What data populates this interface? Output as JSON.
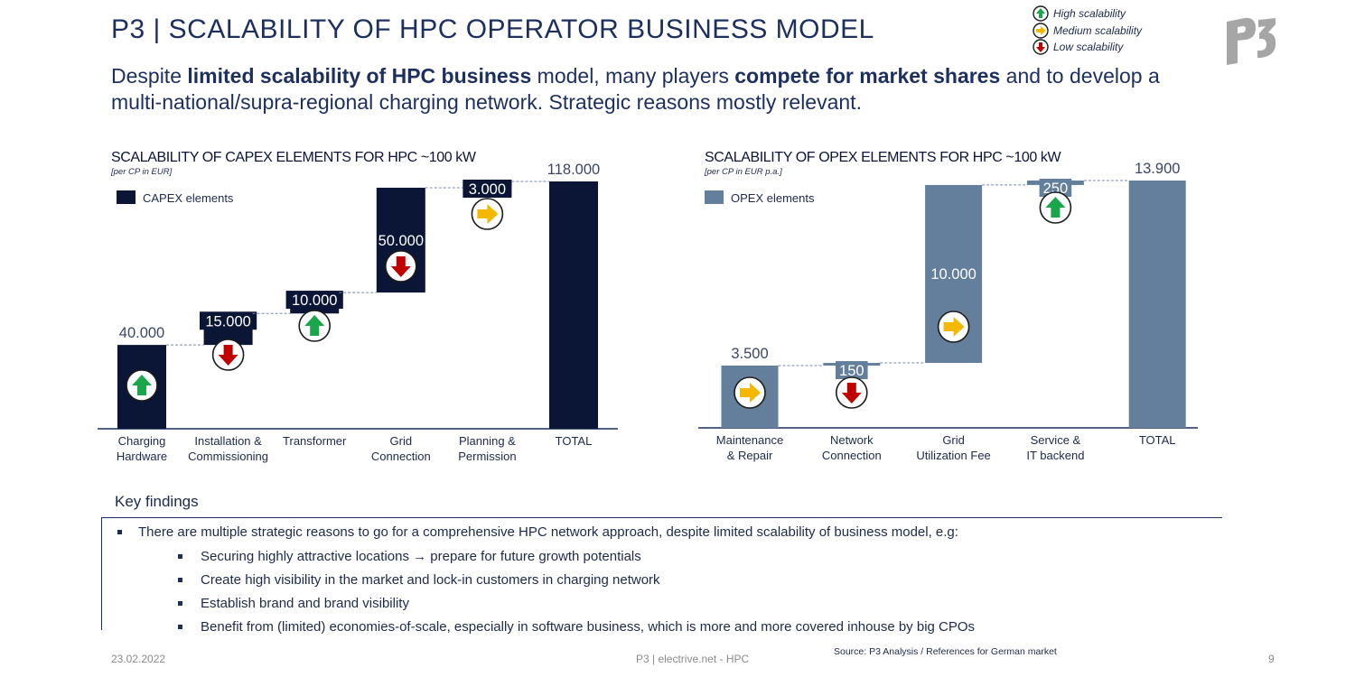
{
  "header": {
    "title": "P3 | SCALABILITY OF HPC OPERATOR BUSINESS MODEL",
    "subtitle_parts": [
      {
        "text": "Despite ",
        "bold": false
      },
      {
        "text": "limited scalability of HPC business",
        "bold": true
      },
      {
        "text": " model, many players ",
        "bold": false
      },
      {
        "text": "compete for market shares",
        "bold": true
      },
      {
        "text": " and to develop a multi-national/supra-regional charging network. Strategic reasons mostly relevant.",
        "bold": false
      }
    ]
  },
  "legend": {
    "items": [
      {
        "label": "High scalability",
        "icon": "up-arrow-icon",
        "color": "#1aa64a"
      },
      {
        "label": "Medium scalability",
        "icon": "right-arrow-icon",
        "color": "#f5b800"
      },
      {
        "label": "Low scalability",
        "icon": "down-arrow-icon",
        "color": "#c00000"
      }
    ]
  },
  "logo": {
    "text": "P3"
  },
  "chart_data": [
    {
      "type": "bar",
      "variant": "waterfall",
      "title": "SCALABILITY OF CAPEX ELEMENTS FOR HPC ~100 kW",
      "subtitle": "[per CP in EUR]",
      "legend_label": "CAPEX elements",
      "color": "#0b1535",
      "categories": [
        "Charging Hardware",
        "Installation & Commissioning",
        "Transformer",
        "Grid Connection",
        "Planning & Permission",
        "TOTAL"
      ],
      "category_lines": [
        [
          "Charging",
          "Hardware"
        ],
        [
          "Installation &",
          "Commissioning"
        ],
        [
          "Transformer"
        ],
        [
          "Grid",
          "Connection"
        ],
        [
          "Planning &",
          "Permission"
        ],
        [
          "TOTAL"
        ]
      ],
      "values": [
        40000,
        15000,
        10000,
        50000,
        3000,
        118000
      ],
      "value_labels": [
        "40.000",
        "15.000",
        "10.000",
        "50.000",
        "3.000",
        "118.000"
      ],
      "scalability": [
        "high",
        "low",
        "high",
        "low",
        "medium",
        null
      ],
      "is_total": [
        false,
        false,
        false,
        false,
        false,
        true
      ]
    },
    {
      "type": "bar",
      "variant": "waterfall",
      "title": "SCALABILITY OF OPEX ELEMENTS FOR HPC ~100 kW",
      "subtitle": "[per CP in EUR p.a.]",
      "legend_label": "OPEX elements",
      "color": "#647f9b",
      "categories": [
        "Maintenance & Repair",
        "Network Connection",
        "Grid Utilization Fee",
        "Service & IT backend",
        "TOTAL"
      ],
      "category_lines": [
        [
          "Maintenance",
          "& Repair"
        ],
        [
          "Network",
          "Connection"
        ],
        [
          "Grid",
          "Utilization Fee"
        ],
        [
          "Service &",
          "IT backend"
        ],
        [
          "TOTAL"
        ]
      ],
      "values": [
        3500,
        150,
        10000,
        250,
        13900
      ],
      "value_labels": [
        "3.500",
        "150",
        "10.000",
        "250",
        "13.900"
      ],
      "scalability": [
        "medium",
        "low",
        "medium",
        "high",
        null
      ],
      "is_total": [
        false,
        false,
        false,
        false,
        true
      ]
    }
  ],
  "key_findings": {
    "title": "Key findings",
    "main": "There are multiple strategic reasons to go for a comprehensive HPC network approach, despite limited scalability of business model, e.g:",
    "sub": [
      "Securing highly attractive locations → prepare for future growth potentials",
      "Create high visibility in the market and lock-in customers in charging network",
      "Establish brand and brand visibility",
      "Benefit from (limited) economies-of-scale, especially in software business, which is more and more covered inhouse by big CPOs"
    ]
  },
  "footer": {
    "date": "23.02.2022",
    "center": "P3 | electrive.net - HPC",
    "source": "Source: P3 Analysis / References for German market",
    "page": "9"
  }
}
